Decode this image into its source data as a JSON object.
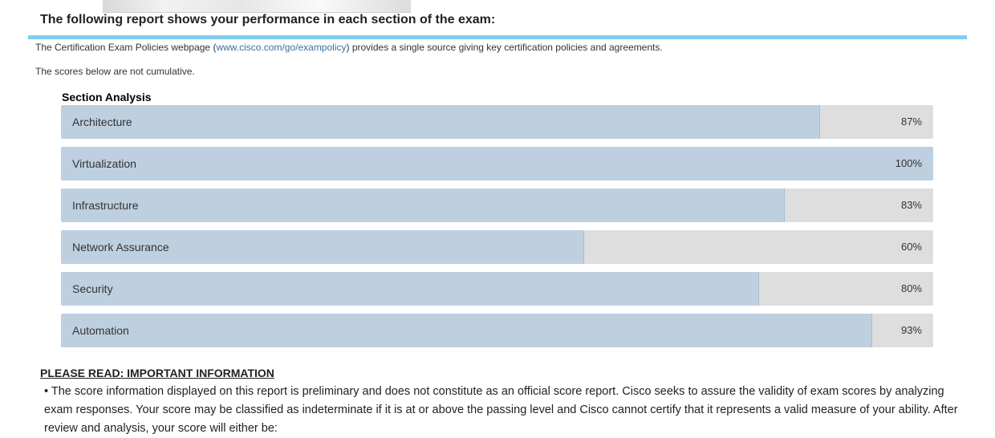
{
  "header": {
    "title": "The following report shows your performance in each section of the exam:"
  },
  "policy": {
    "text_before": "The Certification Exam Policies webpage (",
    "link_text": "www.cisco.com/go/exampolicy",
    "text_after": ") provides a single source giving key certification policies and agreements."
  },
  "cumulative_note": "The scores below are not cumulative.",
  "section_analysis": {
    "title": "Section Analysis",
    "items": [
      {
        "label": "Architecture",
        "percent": 87,
        "value_text": "87%"
      },
      {
        "label": "Virtualization",
        "percent": 100,
        "value_text": "100%"
      },
      {
        "label": "Infrastructure",
        "percent": 83,
        "value_text": "83%"
      },
      {
        "label": "Network Assurance",
        "percent": 60,
        "value_text": "60%"
      },
      {
        "label": "Security",
        "percent": 80,
        "value_text": "80%"
      },
      {
        "label": "Automation",
        "percent": 93,
        "value_text": "93%"
      }
    ]
  },
  "important": {
    "heading": "PLEASE READ: IMPORTANT INFORMATION",
    "bullet": "•",
    "paragraph": "The score information displayed on this report is preliminary and does not constitute as an official score report. Cisco seeks to assure the validity of exam scores by analyzing exam responses. Your score may be classified as indeterminate if it is at or above the passing level and Cisco cannot certify that it represents a valid measure of your ability. After review and analysis, your score will either be:"
  },
  "colors": {
    "accent_rule": "#7fcdee",
    "bar_fill": "#becfe0",
    "bar_track": "#dedede",
    "link": "#3b6fa0"
  }
}
